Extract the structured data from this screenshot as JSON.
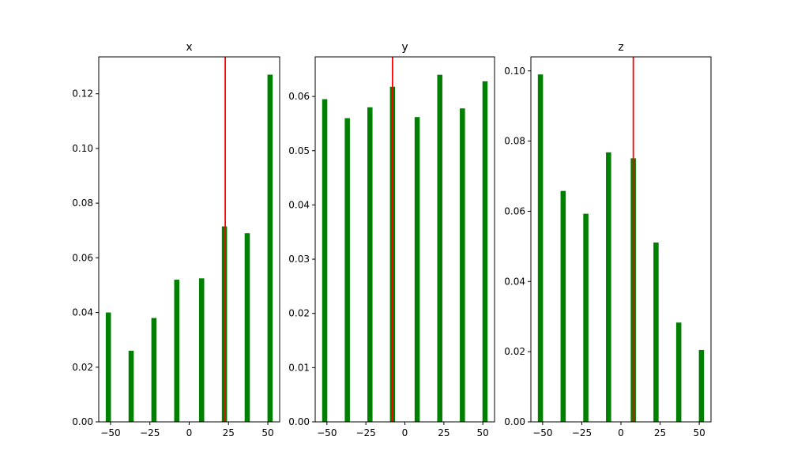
{
  "colors": {
    "bar": "#008000",
    "marker": "#ff0000",
    "axes": "#000000",
    "background": "#ffffff"
  },
  "chart_data": [
    {
      "type": "bar",
      "title": "x",
      "xlabel": "",
      "ylabel": "",
      "x": [
        -51.4,
        -36.9,
        -22.4,
        -7.9,
        7.9,
        22.4,
        36.9,
        51.4
      ],
      "values": [
        0.04,
        0.026,
        0.038,
        0.052,
        0.0525,
        0.0715,
        0.069,
        0.127
      ],
      "marker_line_x": 22.9,
      "xlim": [
        -57.5,
        57.5
      ],
      "ylim": [
        0,
        0.1335
      ],
      "xticks": [
        -50,
        -25,
        0,
        25,
        50
      ],
      "xtick_labels": [
        "−50",
        "−25",
        "0",
        "25",
        "50"
      ],
      "yticks": [
        0.0,
        0.02,
        0.04,
        0.06,
        0.08,
        0.1,
        0.12
      ],
      "ytick_labels": [
        "0.00",
        "0.02",
        "0.04",
        "0.06",
        "0.08",
        "0.10",
        "0.12"
      ],
      "grid": false
    },
    {
      "type": "bar",
      "title": "y",
      "xlabel": "",
      "ylabel": "",
      "x": [
        -51.4,
        -36.9,
        -22.4,
        -7.9,
        7.9,
        22.4,
        36.9,
        51.4
      ],
      "values": [
        0.0595,
        0.056,
        0.058,
        0.0618,
        0.0562,
        0.064,
        0.0578,
        0.0628
      ],
      "marker_line_x": -7.9,
      "xlim": [
        -57.5,
        57.5
      ],
      "ylim": [
        0,
        0.0673
      ],
      "xticks": [
        -50,
        -25,
        0,
        25,
        50
      ],
      "xtick_labels": [
        "−50",
        "−25",
        "0",
        "25",
        "50"
      ],
      "yticks": [
        0.0,
        0.01,
        0.02,
        0.03,
        0.04,
        0.05,
        0.06
      ],
      "ytick_labels": [
        "0.00",
        "0.01",
        "0.02",
        "0.03",
        "0.04",
        "0.05",
        "0.06"
      ],
      "grid": false
    },
    {
      "type": "bar",
      "title": "z",
      "xlabel": "",
      "ylabel": "",
      "x": [
        -51.4,
        -36.9,
        -22.4,
        -7.9,
        7.9,
        22.4,
        36.9,
        51.4
      ],
      "values": [
        0.099,
        0.0658,
        0.0593,
        0.0768,
        0.0751,
        0.0511,
        0.0283,
        0.0205
      ],
      "marker_line_x": 7.9,
      "xlim": [
        -57.5,
        57.5
      ],
      "ylim": [
        0,
        0.104
      ],
      "xticks": [
        -50,
        -25,
        0,
        25,
        50
      ],
      "xtick_labels": [
        "−50",
        "−25",
        "0",
        "25",
        "50"
      ],
      "yticks": [
        0.0,
        0.02,
        0.04,
        0.06,
        0.08,
        0.1
      ],
      "ytick_labels": [
        "0.00",
        "0.02",
        "0.04",
        "0.06",
        "0.08",
        "0.10"
      ],
      "grid": false
    }
  ]
}
